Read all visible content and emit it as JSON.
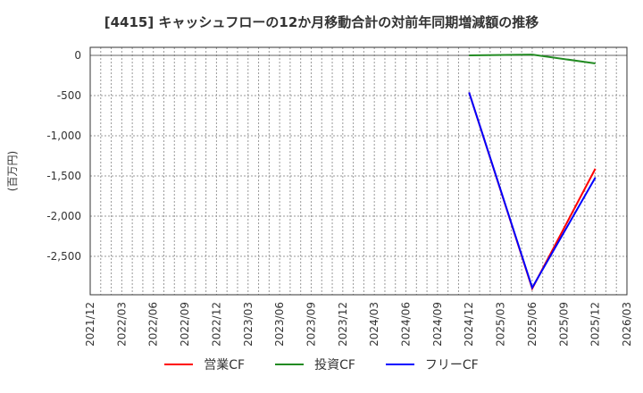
{
  "title": "[4415]  キャッシュフローの12か月移動合計の対前年同期増減額の推移",
  "chart_data": {
    "type": "line",
    "title": "[4415]  キャッシュフローの12か月移動合計の対前年同期増減額の推移",
    "xlabel": "",
    "ylabel": "(百万円)",
    "ylim": [
      -2990,
      100
    ],
    "yticks": [
      0,
      -500,
      -1000,
      -1500,
      -2000,
      -2500
    ],
    "ytick_labels": [
      "0",
      "-500",
      "-1,000",
      "-1,500",
      "-2,000",
      "-2,500"
    ],
    "xtick_labels": [
      "2021/12",
      "2022/03",
      "2022/06",
      "2022/09",
      "2022/12",
      "2023/03",
      "2023/06",
      "2023/09",
      "2023/12",
      "2024/03",
      "2024/06",
      "2024/09",
      "2024/12",
      "2025/03",
      "2025/06",
      "2025/09",
      "2025/12",
      "2026/03"
    ],
    "x_range_months": [
      0,
      51
    ],
    "grid": true,
    "legend_position": "bottom",
    "x": [
      "2024/12",
      "2025/06",
      "2025/12"
    ],
    "series": [
      {
        "name": "営業CF",
        "color": "#ff0000",
        "values": [
          -460,
          -2900,
          -1410
        ]
      },
      {
        "name": "投資CF",
        "color": "#228b22",
        "values": [
          0,
          10,
          -100
        ]
      },
      {
        "name": "フリーCF",
        "color": "#0000ff",
        "values": [
          -460,
          -2890,
          -1520
        ]
      }
    ],
    "x_month_index": [
      36,
      42,
      48
    ]
  }
}
